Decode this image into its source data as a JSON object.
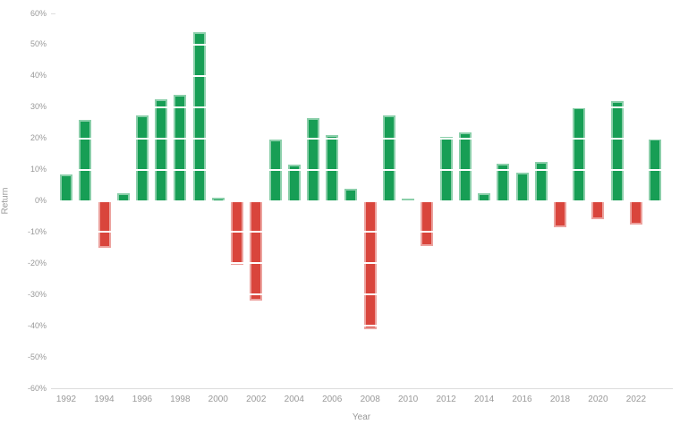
{
  "chart_data": {
    "type": "bar",
    "title": "",
    "xlabel": "Year",
    "ylabel": "Return",
    "ylim": [
      -60,
      60
    ],
    "grid": "white gridlines overlaid on bars every 10%",
    "legend_position": "none",
    "y_tick_labels": [
      "60%",
      "50%",
      "40%",
      "30%",
      "20%",
      "10%",
      "0%",
      "-10%",
      "-20%",
      "-30%",
      "-40%",
      "-50%",
      "-60%"
    ],
    "x_tick_labels": [
      "1992",
      "1994",
      "1996",
      "1998",
      "2000",
      "2002",
      "2004",
      "2006",
      "2008",
      "2010",
      "2012",
      "2014",
      "2016",
      "2018",
      "2020",
      "2022"
    ],
    "categories": [
      1992,
      1993,
      1994,
      1995,
      1996,
      1997,
      1998,
      1999,
      2000,
      2001,
      2002,
      2003,
      2004,
      2005,
      2006,
      2007,
      2008,
      2009,
      2010,
      2011,
      2012,
      2013,
      2014,
      2015,
      2016,
      2017,
      2018,
      2019,
      2020,
      2021,
      2022,
      2023
    ],
    "values": [
      8.5,
      26,
      -15,
      2.5,
      27.5,
      32.5,
      34,
      54,
      1,
      -20.5,
      -32,
      19.5,
      11.5,
      26.5,
      21,
      4,
      -41,
      27.5,
      0.7,
      -14.5,
      20.5,
      22,
      2.5,
      12,
      9,
      12.5,
      -8.5,
      30,
      -6,
      32,
      -7.5,
      20
    ],
    "positive_color": "#179e55",
    "positive_border_color": "#8bcfaa",
    "negative_color": "#d9453c",
    "negative_border_color": "#eca29e",
    "axis_text_color": "#999999",
    "axis_line_color": "#dcdcdc"
  }
}
